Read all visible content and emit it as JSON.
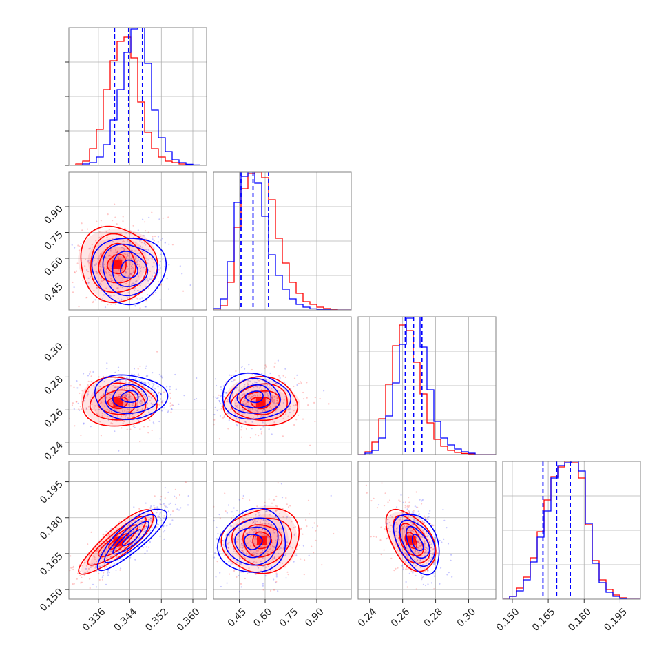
{
  "chart_data": {
    "type": "corner",
    "colors": {
      "blue": "#0000ff",
      "red": "#ff0000",
      "grid": "#b0b0b0",
      "frame": "#808080"
    },
    "params": [
      {
        "range": [
          0.3285,
          0.3635
        ],
        "ticks": [
          "0.336",
          "0.344",
          "0.352",
          "0.360"
        ],
        "tick_values": [
          0.336,
          0.344,
          0.352,
          0.36
        ],
        "quantiles_blue": [
          0.3401,
          0.3437,
          0.3472
        ]
      },
      {
        "range": [
          0.3,
          1.1
        ],
        "ticks": [
          "0.45",
          "0.60",
          "0.75",
          "0.90"
        ],
        "tick_values": [
          0.45,
          0.6,
          0.75,
          0.9
        ],
        "quantiles_blue": [
          0.46,
          0.53,
          0.62
        ]
      },
      {
        "range": [
          0.233,
          0.3165
        ],
        "ticks": [
          "0.24",
          "0.26",
          "0.28",
          "0.30"
        ],
        "tick_values": [
          0.24,
          0.26,
          0.28,
          0.3
        ],
        "quantiles_blue": [
          0.2616,
          0.2666,
          0.2717
        ]
      },
      {
        "range": [
          0.146,
          0.2035
        ],
        "ticks": [
          "0.150",
          "0.165",
          "0.180",
          "0.195"
        ],
        "tick_values": [
          0.15,
          0.165,
          0.18,
          0.195
        ],
        "quantiles_blue": [
          0.1628,
          0.1685,
          0.1742
        ]
      }
    ],
    "hist_blue": [
      [
        0.0,
        0.0,
        0.01,
        0.02,
        0.06,
        0.15,
        0.33,
        0.55,
        0.82,
        0.99,
        1.0,
        0.74,
        0.4,
        0.2,
        0.1,
        0.04,
        0.02,
        0.008,
        0.003,
        0.001
      ],
      [
        0.01,
        0.08,
        0.35,
        0.78,
        0.97,
        1.0,
        0.92,
        0.68,
        0.4,
        0.25,
        0.15,
        0.08,
        0.04,
        0.02,
        0.008,
        0.004,
        0.002,
        0.0,
        0.0,
        0.0
      ],
      [
        0.0,
        0.01,
        0.03,
        0.12,
        0.28,
        0.52,
        0.8,
        0.99,
        1.0,
        0.78,
        0.47,
        0.24,
        0.12,
        0.07,
        0.04,
        0.02,
        0.01,
        0.0,
        0.0,
        0.0
      ],
      [
        0.0,
        0.02,
        0.06,
        0.14,
        0.27,
        0.45,
        0.64,
        0.88,
        0.97,
        0.99,
        1.0,
        0.93,
        0.55,
        0.26,
        0.12,
        0.05,
        0.02,
        0.005,
        0.0,
        0.0
      ]
    ],
    "hist_red": [
      [
        0.0,
        0.01,
        0.03,
        0.12,
        0.26,
        0.55,
        0.76,
        0.9,
        0.93,
        0.78,
        0.46,
        0.24,
        0.12,
        0.06,
        0.03,
        0.02,
        0.01,
        0.005,
        0.002,
        0.0
      ],
      [
        0.0,
        0.03,
        0.2,
        0.6,
        0.88,
        0.99,
        1.0,
        0.96,
        0.8,
        0.52,
        0.34,
        0.2,
        0.12,
        0.06,
        0.04,
        0.02,
        0.01,
        0.005,
        0.0,
        0.0
      ],
      [
        0.0,
        0.02,
        0.09,
        0.26,
        0.51,
        0.79,
        0.94,
        0.9,
        0.67,
        0.44,
        0.23,
        0.11,
        0.06,
        0.03,
        0.015,
        0.008,
        0.004,
        0.0,
        0.0,
        0.0
      ],
      [
        0.0,
        0.02,
        0.08,
        0.16,
        0.3,
        0.49,
        0.72,
        0.89,
        0.96,
        1.0,
        0.99,
        0.88,
        0.54,
        0.28,
        0.14,
        0.07,
        0.03,
        0.01,
        0.0,
        0.0
      ]
    ],
    "blobs": [
      {
        "pair": [
          1,
          0
        ],
        "blue": {
          "center": [
            0.3438,
            0.535
          ],
          "sd": [
            0.0045,
            0.1
          ],
          "r": 0.0
        },
        "red": {
          "center": [
            0.3408,
            0.565
          ],
          "sd": [
            0.0048,
            0.11
          ],
          "r": 0.0
        }
      },
      {
        "pair": [
          2,
          0
        ],
        "blue": {
          "center": [
            0.344,
            0.268
          ],
          "sd": [
            0.0045,
            0.0068
          ],
          "r": 0.0
        },
        "red": {
          "center": [
            0.341,
            0.2645
          ],
          "sd": [
            0.0048,
            0.0072
          ],
          "r": 0.0
        }
      },
      {
        "pair": [
          2,
          1
        ],
        "blue": {
          "center": [
            0.54,
            0.268
          ],
          "sd": [
            0.1,
            0.0068
          ],
          "r": 0.0
        },
        "red": {
          "center": [
            0.575,
            0.2645
          ],
          "sd": [
            0.11,
            0.0072
          ],
          "r": 0.0
        }
      },
      {
        "pair": [
          3,
          0
        ],
        "blue": {
          "center": [
            0.3445,
            0.1715
          ],
          "sd": [
            0.0045,
            0.0065
          ],
          "r": 0.85
        },
        "red": {
          "center": [
            0.341,
            0.17
          ],
          "sd": [
            0.0048,
            0.0065
          ],
          "r": 0.85
        }
      },
      {
        "pair": [
          3,
          1
        ],
        "blue": {
          "center": [
            0.53,
            0.17
          ],
          "sd": [
            0.1,
            0.0065
          ],
          "r": 0.05
        },
        "red": {
          "center": [
            0.58,
            0.1705
          ],
          "sd": [
            0.11,
            0.0068
          ],
          "r": 0.05
        }
      },
      {
        "pair": [
          3,
          2
        ],
        "blue": {
          "center": [
            0.269,
            0.1695
          ],
          "sd": [
            0.0068,
            0.0065
          ],
          "r": -0.45
        },
        "red": {
          "center": [
            0.265,
            0.1705
          ],
          "sd": [
            0.0072,
            0.0065
          ],
          "r": -0.45
        }
      }
    ]
  }
}
